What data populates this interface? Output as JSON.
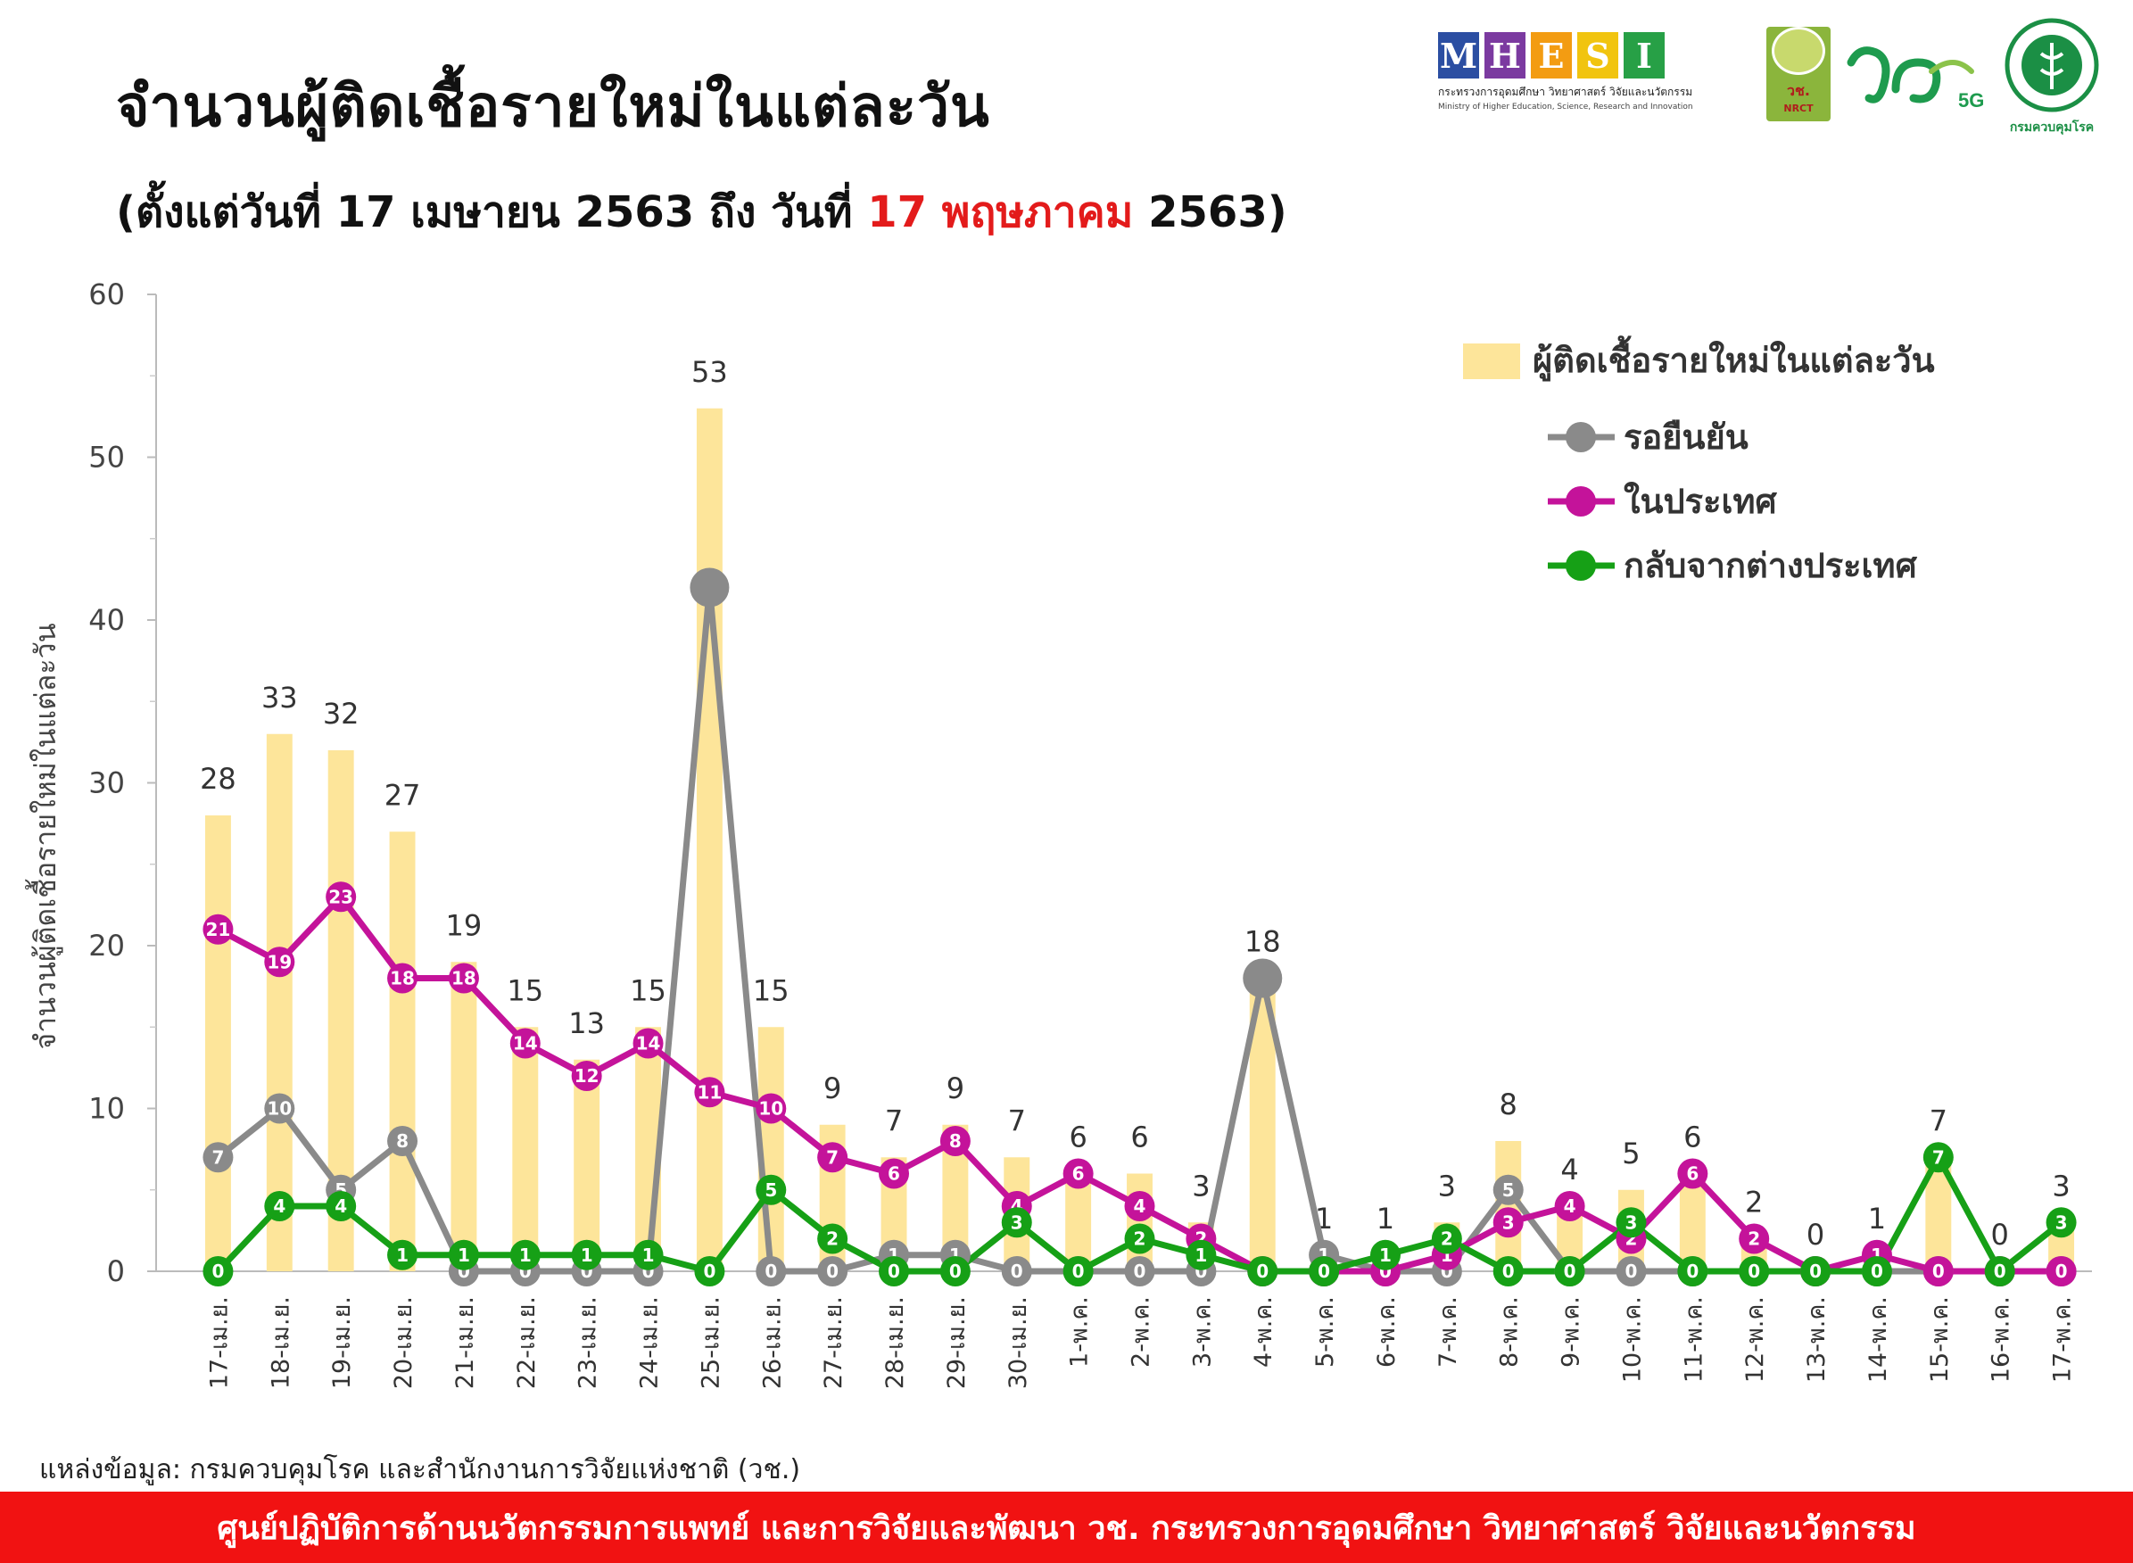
{
  "header": {
    "title": "จำนวนผู้ติดเชื้อรายใหม่ในแต่ละวัน",
    "subtitle_pre": "(ตั้งแต่วันที่ 17 เมษายน 2563 ถึง วันที่ ",
    "subtitle_highlight": "17 พฤษภาคม",
    "subtitle_post": " 2563)"
  },
  "logos": {
    "mhesi_letters": [
      "M",
      "H",
      "E",
      "S",
      "I"
    ],
    "mhesi_colors": [
      "#2b4ea2",
      "#7b3aa0",
      "#f39c12",
      "#f1c40f",
      "#27a046"
    ],
    "mhesi_line1": "กระทรวงการอุดมศึกษา วิทยาศาสตร์ วิจัยและนวัตกรรม",
    "mhesi_line2": "Ministry of Higher Education, Science, Research and Innovation",
    "nrct_line1": "วช.",
    "nrct_line2": "NRCT",
    "v5g_text": "5G",
    "ddc_label": "กรมควบคุมโรค"
  },
  "source": "แหล่งข้อมูล: กรมควบคุมโรค และสำนักงานการวิจัยแห่งชาติ (วช.)",
  "footer": "ศูนย์ปฏิบัติการด้านนวัตกรรมการแพทย์ และการวิจัยและพัฒนา    วช.    กระทรวงการอุดมศึกษา วิทยาศาสตร์ วิจัยและนวัตกรรม",
  "chart_data": {
    "type": "bar+line",
    "ylabel": "จำนวนผู้ติดเชื้อรายใหม่ในแต่ละวัน",
    "ylim": [
      0,
      60
    ],
    "yticks": [
      0,
      10,
      20,
      30,
      40,
      50,
      60
    ],
    "grid": false,
    "legend_position": "top-right",
    "categories": [
      "17-เม.ย.",
      "18-เม.ย.",
      "19-เม.ย.",
      "20-เม.ย.",
      "21-เม.ย.",
      "22-เม.ย.",
      "23-เม.ย.",
      "24-เม.ย.",
      "25-เม.ย.",
      "26-เม.ย.",
      "27-เม.ย.",
      "28-เม.ย.",
      "29-เม.ย.",
      "30-เม.ย.",
      "1-พ.ค.",
      "2-พ.ค.",
      "3-พ.ค.",
      "4-พ.ค.",
      "5-พ.ค.",
      "6-พ.ค.",
      "7-พ.ค.",
      "8-พ.ค.",
      "9-พ.ค.",
      "10-พ.ค.",
      "11-พ.ค.",
      "12-พ.ค.",
      "13-พ.ค.",
      "14-พ.ค.",
      "15-พ.ค.",
      "16-พ.ค.",
      "17-พ.ค."
    ],
    "bars": {
      "name": "ผู้ติดเชื้อรายใหม่ในแต่ละวัน",
      "color": "#fde59a",
      "values": [
        28,
        33,
        32,
        27,
        19,
        15,
        13,
        15,
        53,
        15,
        9,
        7,
        9,
        7,
        6,
        6,
        3,
        18,
        1,
        1,
        3,
        8,
        4,
        5,
        6,
        2,
        0,
        1,
        7,
        0,
        3
      ]
    },
    "series": [
      {
        "name": "รอยืนยัน",
        "color": "#8a8a8a",
        "values": [
          7,
          10,
          5,
          8,
          0,
          0,
          0,
          0,
          42,
          0,
          0,
          1,
          1,
          0,
          0,
          0,
          0,
          18,
          1,
          0,
          0,
          5,
          0,
          0,
          0,
          0,
          0,
          0,
          0,
          0,
          0
        ]
      },
      {
        "name": "ในประเทศ",
        "color": "#c4139a",
        "values": [
          21,
          19,
          23,
          18,
          18,
          14,
          12,
          14,
          11,
          10,
          7,
          6,
          8,
          4,
          6,
          4,
          2,
          0,
          0,
          0,
          1,
          3,
          4,
          2,
          6,
          2,
          0,
          1,
          0,
          0,
          0
        ]
      },
      {
        "name": "กลับจากต่างประเทศ",
        "color": "#16a016",
        "values": [
          0,
          4,
          4,
          1,
          1,
          1,
          1,
          1,
          0,
          5,
          2,
          0,
          0,
          3,
          0,
          2,
          1,
          0,
          0,
          1,
          2,
          0,
          0,
          3,
          0,
          0,
          0,
          0,
          7,
          0,
          3
        ]
      }
    ]
  }
}
